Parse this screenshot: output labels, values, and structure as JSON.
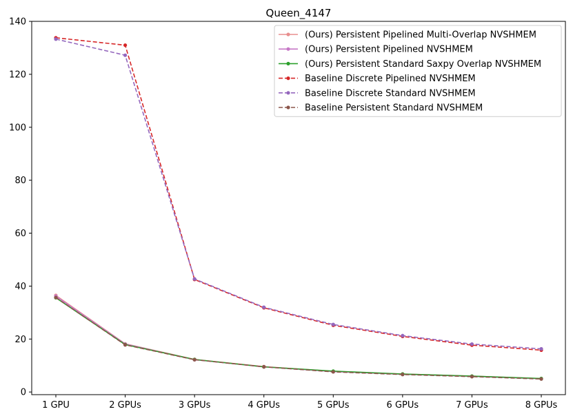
{
  "chart_data": {
    "type": "line",
    "title": "Queen_4147",
    "xlabel": "",
    "ylabel": "",
    "categories": [
      "1 GPU",
      "2 GPUs",
      "3 GPUs",
      "4 GPUs",
      "5 GPUs",
      "6 GPUs",
      "7 GPUs",
      "8 GPUs"
    ],
    "ylim": [
      -1,
      140
    ],
    "yticks": [
      0,
      20,
      40,
      60,
      80,
      100,
      120,
      140
    ],
    "grid": false,
    "legend_position": "top-right",
    "series": [
      {
        "name": "(Ours) Persistent Pipelined Multi-Overlap NVSHMEM",
        "color": "#e88f8f",
        "dash": "solid",
        "values": [
          36.5,
          18.2,
          12.3,
          9.6,
          7.8,
          6.8,
          6.0,
          5.1
        ]
      },
      {
        "name": "(Ours) Persistent Pipelined NVSHMEM",
        "color": "#c678c6",
        "dash": "solid",
        "values": [
          36.2,
          18.1,
          12.2,
          9.5,
          7.7,
          6.7,
          5.9,
          5.0
        ]
      },
      {
        "name": "(Ours) Persistent Standard Saxpy Overlap NVSHMEM",
        "color": "#2ca02c",
        "dash": "solid",
        "values": [
          35.6,
          17.9,
          12.3,
          9.5,
          7.9,
          6.8,
          6.0,
          5.1
        ]
      },
      {
        "name": "Baseline Discrete Pipelined NVSHMEM",
        "color": "#d62728",
        "dash": "dashed",
        "values": [
          133.8,
          131.0,
          42.5,
          31.8,
          25.2,
          21.0,
          17.7,
          15.8
        ]
      },
      {
        "name": "Baseline Discrete Standard NVSHMEM",
        "color": "#9467bd",
        "dash": "dashed",
        "values": [
          133.3,
          127.2,
          42.7,
          32.0,
          25.5,
          21.3,
          18.1,
          16.3
        ]
      },
      {
        "name": "Baseline Persistent Standard NVSHMEM",
        "color": "#8c564b",
        "dash": "dashed",
        "values": [
          35.7,
          17.8,
          12.2,
          9.5,
          7.6,
          6.6,
          5.8,
          4.9
        ]
      }
    ]
  }
}
